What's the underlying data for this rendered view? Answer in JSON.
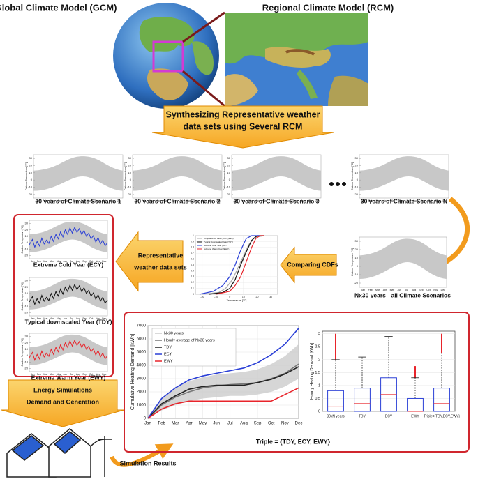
{
  "header": {
    "gcm_title": "Global Climate Model (GCM)",
    "rcm_title": "Regional Climate Model (RCM)"
  },
  "synthesis_banner": [
    "Synthesizing Representative weather",
    "data sets using Several RCM"
  ],
  "temperature_plot": {
    "y_label": "Outdoor Temperature [°C]",
    "ylim": [
      -25,
      35
    ],
    "yticks": [
      -20,
      -10,
      0,
      10,
      20,
      30
    ],
    "months": [
      "Jan",
      "Feb",
      "Mar",
      "Apr",
      "May",
      "Jun",
      "Jul",
      "Aug",
      "Sep",
      "Oct",
      "Nov",
      "Dec"
    ]
  },
  "scenarios": [
    "30 years of Climate Scenario 1",
    "30 years of Climate Scenario 2",
    "30 years of Climate Scenario 3",
    "30 years of Climate Scenario N"
  ],
  "all_scenarios": "Nx30 years - all Climate Scenarios",
  "comparing_cdfs": "Comparing CDFs",
  "cdf_chart": {
    "type": "line",
    "x_label": "Temperature [°C]",
    "xlim": [
      -25,
      35
    ],
    "xticks": [
      -20,
      -10,
      0,
      10,
      20,
      30
    ],
    "ylim": [
      0,
      1
    ],
    "yticks": [
      0,
      0.1,
      0.2,
      0.3,
      0.4,
      0.5,
      0.6,
      0.7,
      0.8,
      0.9,
      1
    ],
    "series": [
      {
        "name": "Original RCM data (30xN years)",
        "color": "#aaaaaa",
        "x": [
          -20,
          -8,
          -3,
          2,
          6,
          10,
          14,
          18,
          25
        ],
        "values": [
          0,
          0.03,
          0.1,
          0.25,
          0.45,
          0.65,
          0.85,
          0.97,
          1
        ]
      },
      {
        "name": "Typical Downscaled Year (TDY)",
        "color": "#111111",
        "x": [
          -15,
          -5,
          0,
          4,
          8,
          12,
          16,
          20,
          25
        ],
        "values": [
          0,
          0.03,
          0.1,
          0.25,
          0.5,
          0.72,
          0.92,
          1,
          1
        ]
      },
      {
        "name": "Extreme Cold Year (ECY)",
        "color": "#2a3fd6",
        "x": [
          -22,
          -12,
          -5,
          0,
          4,
          8,
          12,
          16,
          22
        ],
        "values": [
          0,
          0.05,
          0.15,
          0.3,
          0.5,
          0.75,
          0.95,
          1,
          1
        ]
      },
      {
        "name": "Extreme Warm Year (EWY)",
        "color": "#e8242b",
        "x": [
          -10,
          0,
          4,
          8,
          12,
          16,
          19,
          22,
          25
        ],
        "values": [
          0,
          0.05,
          0.15,
          0.3,
          0.55,
          0.8,
          0.95,
          1,
          1
        ]
      }
    ]
  },
  "representative": [
    "Representative",
    "weather data sets"
  ],
  "selected_years": [
    {
      "label": "Extreme Cold Year (ECY)",
      "color": "#2a3fd6"
    },
    {
      "label": "Typical downscaled Year (TDY)",
      "color": "#111111"
    },
    {
      "label": "Extreme Warm Year (EWY)",
      "color": "#e8242b"
    }
  ],
  "energy_simulations": [
    "Energy Simulations",
    "Demand and Generation"
  ],
  "simulation_results": "Simulation Results",
  "cumulative_chart": {
    "type": "line",
    "y_label": "Cumulative Heating Demand [kWh]",
    "categories": [
      "Jan",
      "Feb",
      "Mar",
      "Apr",
      "May",
      "Jun",
      "Jul",
      "Aug",
      "Sep",
      "Oct",
      "Nov",
      "Dec"
    ],
    "ylim": [
      0,
      7000
    ],
    "yticks": [
      0,
      1000,
      2000,
      3000,
      4000,
      5000,
      6000,
      7000
    ],
    "series": [
      {
        "name": "Nx30 years",
        "color": "#cccccc",
        "values_low": [
          0,
          600,
          1000,
          1300,
          1500,
          1600,
          1700,
          1700,
          1800,
          2000,
          2400,
          3000
        ],
        "values_high": [
          0,
          1500,
          2300,
          2800,
          3100,
          3300,
          3400,
          3500,
          3700,
          4100,
          4700,
          5600
        ]
      },
      {
        "name": "Hourly average of Nx30 years",
        "color": "#777777",
        "values": [
          0,
          1000,
          1600,
          2000,
          2300,
          2450,
          2550,
          2600,
          2700,
          3000,
          3400,
          4100
        ]
      },
      {
        "name": "TDY",
        "color": "#222222",
        "values": [
          0,
          1100,
          1700,
          2200,
          2400,
          2500,
          2500,
          2500,
          2700,
          2950,
          3350,
          3900
        ]
      },
      {
        "name": "ECY",
        "color": "#2a3fd6",
        "values": [
          0,
          1500,
          2300,
          2900,
          3200,
          3400,
          3600,
          3800,
          4200,
          4800,
          5600,
          6800
        ]
      },
      {
        "name": "EWY",
        "color": "#e8242b",
        "values": [
          0,
          700,
          1100,
          1300,
          1300,
          1300,
          1300,
          1300,
          1300,
          1300,
          1800,
          2300
        ]
      }
    ]
  },
  "box_chart": {
    "type": "box",
    "y_label": "Hourly Heating Demand [kWh]",
    "categories": [
      "30xN years",
      "TDY",
      "ECY",
      "EWY",
      "Triple={TDY,ECY,EWY}"
    ],
    "ylim": [
      0,
      3.1
    ],
    "yticks": [
      0,
      0.5,
      1,
      1.5,
      2,
      2.5,
      3
    ],
    "boxes": [
      {
        "whisker_low": 0,
        "q1": 0,
        "median": 0.2,
        "q3": 0.8,
        "whisker_high": 2.0,
        "outlier_max": 3.0
      },
      {
        "whisker_low": 0,
        "q1": 0,
        "median": 0.3,
        "q3": 0.9,
        "whisker_high": 2.1,
        "outlier_max": 2.1
      },
      {
        "whisker_low": 0,
        "q1": 0,
        "median": 0.65,
        "q3": 1.3,
        "whisker_high": 2.9,
        "outlier_max": 2.9
      },
      {
        "whisker_low": 0,
        "q1": 0,
        "median": 0,
        "q3": 0.5,
        "whisker_high": 1.3,
        "outlier_max": 1.75
      },
      {
        "whisker_low": 0,
        "q1": 0,
        "median": 0.3,
        "q3": 0.9,
        "whisker_high": 2.25,
        "outlier_max": 3.0
      }
    ]
  },
  "triple": "Triple = {TDY, ECY, EWY}"
}
